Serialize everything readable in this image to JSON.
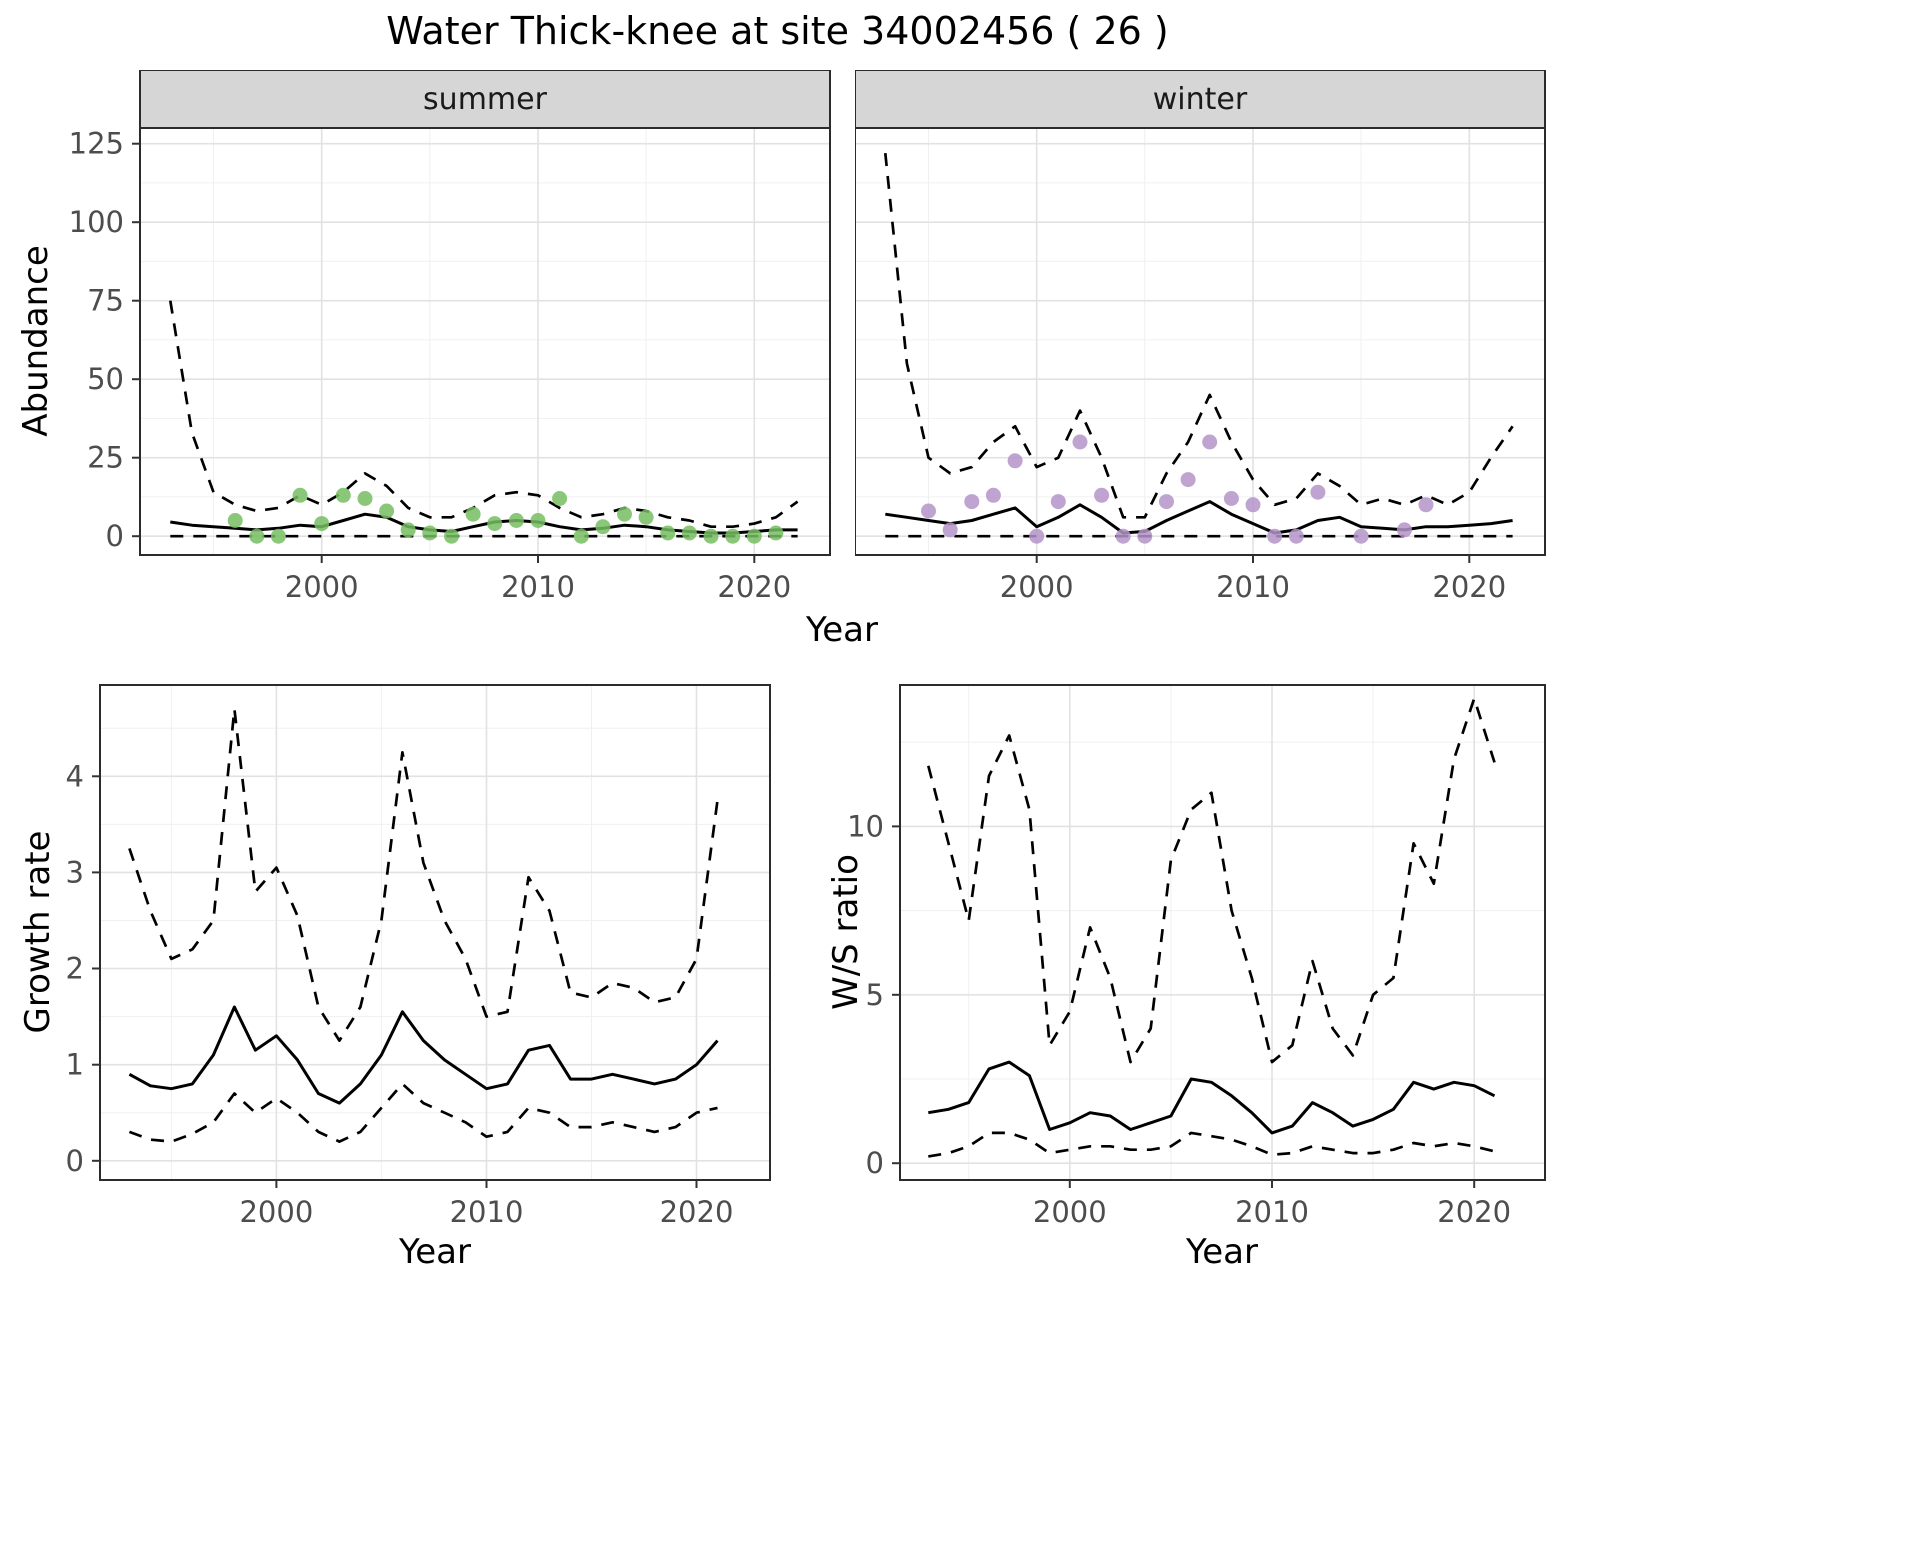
{
  "title": "Water Thick-knee at site 34002456 ( 26 )",
  "colors": {
    "line": "#000000",
    "summer_points": "#77bd62",
    "winter_points": "#b493c8",
    "strip_bg": "#d6d6d6",
    "panel_border": "#2b2b2b",
    "grid_major": "#e2e2e2",
    "grid_minor": "#f0f0f0",
    "tick_text": "#4d4d4d"
  },
  "chart_data": [
    {
      "id": "abundance-summer",
      "type": "line+scatter",
      "facet_label": "summer",
      "ylabel": "Abundance",
      "xlabel": "Year",
      "xlim": [
        1991.6,
        2023.5
      ],
      "ylim": [
        -6,
        130
      ],
      "xticks": [
        2000,
        2010,
        2020
      ],
      "xminor": [
        1995,
        2005,
        2015
      ],
      "yticks": [
        0,
        25,
        50,
        75,
        100,
        125
      ],
      "yminor": [
        12.5,
        37.5,
        62.5,
        87.5,
        112.5
      ],
      "x": [
        1993,
        1994,
        1995,
        1996,
        1997,
        1998,
        1999,
        2000,
        2001,
        2002,
        2003,
        2004,
        2005,
        2006,
        2007,
        2008,
        2009,
        2010,
        2011,
        2012,
        2013,
        2014,
        2015,
        2016,
        2017,
        2018,
        2019,
        2020,
        2021,
        2022
      ],
      "series": [
        {
          "name": "upper95",
          "style": "dashed",
          "y": [
            75,
            33,
            14,
            10,
            8,
            9,
            13,
            10,
            14,
            20,
            16,
            9,
            6,
            6,
            9,
            13,
            14,
            13,
            9,
            6,
            7,
            9,
            8,
            6,
            5,
            3,
            3,
            4,
            6,
            11
          ]
        },
        {
          "name": "median",
          "style": "solid",
          "y": [
            4.5,
            3.5,
            3,
            2.5,
            2,
            2.5,
            3.5,
            3,
            5,
            7,
            6,
            3,
            2,
            1.5,
            3,
            4.5,
            5,
            4.5,
            3,
            2,
            2.5,
            3.5,
            3,
            2,
            1.5,
            1,
            1,
            1.5,
            2,
            2
          ]
        },
        {
          "name": "lower95",
          "style": "dashed",
          "y": [
            0,
            0,
            0,
            0,
            0,
            0,
            0,
            0,
            0,
            0,
            0,
            0,
            0,
            0,
            0,
            0,
            0,
            0,
            0,
            0,
            0,
            0,
            0,
            0,
            0,
            0,
            0,
            0,
            0,
            0
          ]
        }
      ],
      "points": {
        "name": "observed-summer-counts",
        "color": "#77bd62",
        "x": [
          1996,
          1997,
          1998,
          1999,
          2000,
          2001,
          2002,
          2003,
          2004,
          2005,
          2006,
          2007,
          2008,
          2009,
          2010,
          2011,
          2012,
          2013,
          2014,
          2015,
          2016,
          2017,
          2018,
          2019,
          2020,
          2021
        ],
        "y": [
          5,
          0,
          0,
          13,
          4,
          13,
          12,
          8,
          2,
          1,
          0,
          7,
          4,
          5,
          5,
          12,
          0,
          3,
          7,
          6,
          1,
          1,
          0,
          0,
          0,
          1
        ]
      }
    },
    {
      "id": "abundance-winter",
      "type": "line+scatter",
      "facet_label": "winter",
      "ylabel": "Abundance",
      "xlabel": "Year",
      "xlim": [
        1991.6,
        2023.5
      ],
      "ylim": [
        -6,
        130
      ],
      "xticks": [
        2000,
        2010,
        2020
      ],
      "xminor": [
        1995,
        2005,
        2015
      ],
      "yticks": [
        0,
        25,
        50,
        75,
        100,
        125
      ],
      "yminor": [
        12.5,
        37.5,
        62.5,
        87.5,
        112.5
      ],
      "x": [
        1993,
        1994,
        1995,
        1996,
        1997,
        1998,
        1999,
        2000,
        2001,
        2002,
        2003,
        2004,
        2005,
        2006,
        2007,
        2008,
        2009,
        2010,
        2011,
        2012,
        2013,
        2014,
        2015,
        2016,
        2017,
        2018,
        2019,
        2020,
        2021,
        2022
      ],
      "series": [
        {
          "name": "upper95",
          "style": "dashed",
          "y": [
            122,
            55,
            25,
            20,
            22,
            30,
            35,
            22,
            25,
            40,
            25,
            6,
            6,
            20,
            30,
            45,
            30,
            18,
            10,
            12,
            20,
            16,
            10,
            12,
            10,
            13,
            10,
            14,
            25,
            35
          ]
        },
        {
          "name": "median",
          "style": "solid",
          "y": [
            7,
            6,
            5,
            4,
            5,
            7,
            9,
            3,
            6,
            10,
            6,
            1,
            1.5,
            5,
            8,
            11,
            7,
            4,
            1,
            2,
            5,
            6,
            3,
            2.5,
            2,
            3,
            3,
            3.5,
            4,
            5
          ]
        },
        {
          "name": "lower95",
          "style": "dashed",
          "y": [
            0,
            0,
            0,
            0,
            0,
            0,
            0,
            0,
            0,
            0,
            0,
            0,
            0,
            0,
            0,
            0,
            0,
            0,
            0,
            0,
            0,
            0,
            0,
            0,
            0,
            0,
            0,
            0,
            0,
            0
          ]
        }
      ],
      "points": {
        "name": "observed-winter-counts",
        "color": "#b493c8",
        "x": [
          1995,
          1996,
          1997,
          1998,
          1999,
          2000,
          2001,
          2002,
          2003,
          2004,
          2005,
          2006,
          2007,
          2008,
          2009,
          2010,
          2011,
          2012,
          2013,
          2015,
          2017,
          2018
        ],
        "y": [
          8,
          2,
          11,
          13,
          24,
          0,
          11,
          30,
          13,
          0,
          0,
          11,
          18,
          30,
          12,
          10,
          0,
          0,
          14,
          0,
          2,
          10
        ]
      }
    },
    {
      "id": "growth-rate",
      "type": "line",
      "facet_label": "",
      "ylabel": "Growth rate",
      "xlabel": "Year",
      "xlim": [
        1991.6,
        2023.5
      ],
      "ylim": [
        -0.2,
        4.95
      ],
      "xticks": [
        2000,
        2010,
        2020
      ],
      "xminor": [
        1995,
        2005,
        2015
      ],
      "yticks": [
        0,
        1,
        2,
        3,
        4
      ],
      "yminor": [
        0.5,
        1.5,
        2.5,
        3.5,
        4.5
      ],
      "x": [
        1993,
        1994,
        1995,
        1996,
        1997,
        1998,
        1999,
        2000,
        2001,
        2002,
        2003,
        2004,
        2005,
        2006,
        2007,
        2008,
        2009,
        2010,
        2011,
        2012,
        2013,
        2014,
        2015,
        2016,
        2017,
        2018,
        2019,
        2020,
        2021
      ],
      "series": [
        {
          "name": "upper95",
          "style": "dashed",
          "y": [
            3.25,
            2.6,
            2.1,
            2.2,
            2.5,
            4.7,
            2.8,
            3.05,
            2.55,
            1.6,
            1.25,
            1.6,
            2.5,
            4.25,
            3.1,
            2.5,
            2.1,
            1.5,
            1.55,
            2.95,
            2.6,
            1.75,
            1.7,
            1.85,
            1.8,
            1.65,
            1.7,
            2.1,
            3.75
          ]
        },
        {
          "name": "median",
          "style": "solid",
          "y": [
            0.9,
            0.78,
            0.75,
            0.8,
            1.1,
            1.6,
            1.15,
            1.3,
            1.05,
            0.7,
            0.6,
            0.8,
            1.1,
            1.55,
            1.25,
            1.05,
            0.9,
            0.75,
            0.8,
            1.15,
            1.2,
            0.85,
            0.85,
            0.9,
            0.85,
            0.8,
            0.85,
            1.0,
            1.25
          ]
        },
        {
          "name": "lower95",
          "style": "dashed",
          "y": [
            0.3,
            0.22,
            0.2,
            0.28,
            0.4,
            0.7,
            0.5,
            0.65,
            0.5,
            0.3,
            0.2,
            0.3,
            0.55,
            0.8,
            0.6,
            0.5,
            0.4,
            0.25,
            0.3,
            0.55,
            0.5,
            0.35,
            0.35,
            0.4,
            0.35,
            0.3,
            0.35,
            0.5,
            0.55
          ]
        }
      ]
    },
    {
      "id": "ws-ratio",
      "type": "line",
      "facet_label": "",
      "ylabel": "W/S ratio",
      "xlabel": "Year",
      "xlim": [
        1991.6,
        2023.5
      ],
      "ylim": [
        -0.5,
        14.2
      ],
      "xticks": [
        2000,
        2010,
        2020
      ],
      "xminor": [
        1995,
        2005,
        2015
      ],
      "yticks": [
        0,
        5,
        10
      ],
      "yminor": [
        2.5,
        7.5,
        12.5
      ],
      "x": [
        1993,
        1994,
        1995,
        1996,
        1997,
        1998,
        1999,
        2000,
        2001,
        2002,
        2003,
        2004,
        2005,
        2006,
        2007,
        2008,
        2009,
        2010,
        2011,
        2012,
        2013,
        2014,
        2015,
        2016,
        2017,
        2018,
        2019,
        2020,
        2021
      ],
      "series": [
        {
          "name": "upper95",
          "style": "dashed",
          "y": [
            11.8,
            9.5,
            7.2,
            11.5,
            12.7,
            10.5,
            3.5,
            4.5,
            7.0,
            5.5,
            3.0,
            4.0,
            9.0,
            10.5,
            11.0,
            7.5,
            5.5,
            3.0,
            3.5,
            6.0,
            4.0,
            3.2,
            5.0,
            5.5,
            9.5,
            8.3,
            12.0,
            13.8,
            11.9
          ]
        },
        {
          "name": "median",
          "style": "solid",
          "y": [
            1.5,
            1.6,
            1.8,
            2.8,
            3.0,
            2.6,
            1.0,
            1.2,
            1.5,
            1.4,
            1.0,
            1.2,
            1.4,
            2.5,
            2.4,
            2.0,
            1.5,
            0.9,
            1.1,
            1.8,
            1.5,
            1.1,
            1.3,
            1.6,
            2.4,
            2.2,
            2.4,
            2.3,
            2.0
          ]
        },
        {
          "name": "lower95",
          "style": "dashed",
          "y": [
            0.2,
            0.3,
            0.5,
            0.9,
            0.9,
            0.7,
            0.3,
            0.4,
            0.5,
            0.5,
            0.4,
            0.4,
            0.5,
            0.9,
            0.8,
            0.7,
            0.5,
            0.25,
            0.3,
            0.5,
            0.4,
            0.3,
            0.3,
            0.4,
            0.6,
            0.5,
            0.6,
            0.5,
            0.35
          ]
        }
      ]
    }
  ]
}
